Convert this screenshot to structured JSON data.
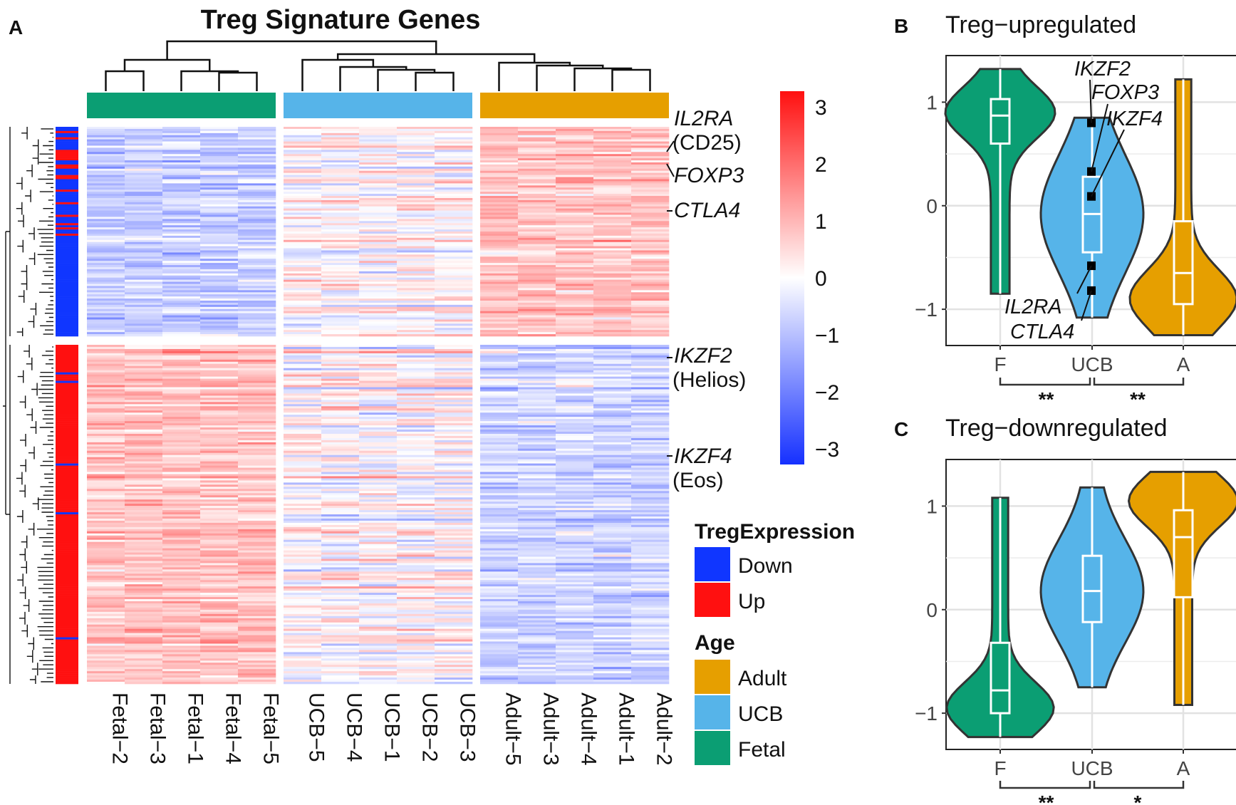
{
  "colors": {
    "fetal": "#0b9e73",
    "ucb": "#56b4e9",
    "adult": "#e69f00",
    "down": "#1036ff",
    "up": "#ff1010",
    "heat_low": "#1530ff",
    "heat_mid": "#ffffff",
    "heat_high": "#ff1414"
  },
  "panel_a": {
    "letter": "A",
    "title": "Treg Signature Genes",
    "groups": [
      {
        "name": "Fetal",
        "color": "#0b9e73",
        "samples": [
          "Fetal−2",
          "Fetal−3",
          "Fetal−1",
          "Fetal−4",
          "Fetal−5"
        ]
      },
      {
        "name": "UCB",
        "color": "#56b4e9",
        "samples": [
          "UCB−5",
          "UCB−4",
          "UCB−1",
          "UCB−2",
          "UCB−3"
        ]
      },
      {
        "name": "Adult",
        "color": "#e69f00",
        "samples": [
          "Adult−5",
          "Adult−3",
          "Adult−4",
          "Adult−1",
          "Adult−2"
        ]
      }
    ],
    "gene_labels": [
      {
        "name": "IL2RA",
        "alias": "(CD25)",
        "italic": true
      },
      {
        "name": "FOXP3",
        "alias": "",
        "italic": true
      },
      {
        "name": "CTLA4",
        "alias": "",
        "italic": true
      },
      {
        "name": "IKZF2",
        "alias": "(Helios)",
        "italic": true
      },
      {
        "name": "IKZF4",
        "alias": "(Eos)",
        "italic": true
      }
    ],
    "colorbar_ticks": [
      "3",
      "2",
      "1",
      "0",
      "−1",
      "−2",
      "−3"
    ],
    "legend": {
      "treg_title": "TregExpression",
      "treg_items": [
        {
          "label": "Down",
          "color": "#1036ff"
        },
        {
          "label": "Up",
          "color": "#ff1010"
        }
      ],
      "age_title": "Age",
      "age_items": [
        {
          "label": "Adult",
          "color": "#e69f00"
        },
        {
          "label": "UCB",
          "color": "#56b4e9"
        },
        {
          "label": "Fetal",
          "color": "#0b9e73"
        }
      ]
    }
  },
  "panel_b": {
    "letter": "B",
    "title": "Treg−upregulated",
    "y_ticks": [
      "1",
      "0",
      "−1"
    ],
    "x_ticks": [
      "F",
      "UCB",
      "A"
    ],
    "significance": [
      "**",
      "**"
    ],
    "marker_labels": [
      "IKZF2",
      "FOXP3",
      "IKZF4",
      "IL2RA",
      "CTLA4"
    ]
  },
  "panel_c": {
    "letter": "C",
    "title": "Treg−downregulated",
    "y_ticks": [
      "1",
      "0",
      "−1"
    ],
    "x_ticks": [
      "F",
      "UCB",
      "A"
    ],
    "significance": [
      "**",
      "*"
    ]
  },
  "chart_data": [
    {
      "type": "heatmap",
      "title": "Treg Signature Genes",
      "columns": [
        "Fetal−2",
        "Fetal−3",
        "Fetal−1",
        "Fetal−4",
        "Fetal−5",
        "UCB−5",
        "UCB−4",
        "UCB−1",
        "UCB−2",
        "UCB−3",
        "Adult−5",
        "Adult−3",
        "Adult−4",
        "Adult−1",
        "Adult−2"
      ],
      "row_blocks": [
        {
          "name": "Down",
          "group_means": {
            "Fetal": -0.7,
            "UCB": 0.1,
            "Adult": 0.8
          }
        },
        {
          "name": "Up",
          "group_means": {
            "Fetal": 0.8,
            "UCB": 0.1,
            "Adult": -0.6
          }
        }
      ],
      "color_scale_range": [
        -3,
        3
      ]
    },
    {
      "type": "violin",
      "title": "Treg−upregulated",
      "categories": [
        "F",
        "UCB",
        "A"
      ],
      "ylim": [
        -1.35,
        1.45
      ],
      "boxes": [
        {
          "category": "F",
          "min": -0.85,
          "q1": 0.6,
          "median": 0.87,
          "q3": 1.03,
          "max": 1.32
        },
        {
          "category": "UCB",
          "min": -1.08,
          "q1": -0.45,
          "median": -0.08,
          "q3": 0.28,
          "max": 0.85
        },
        {
          "category": "A",
          "min": -1.25,
          "q1": -0.95,
          "median": -0.65,
          "q3": -0.15,
          "max": 1.22
        }
      ],
      "markers": [
        {
          "label": "IKZF2",
          "value": 0.8
        },
        {
          "label": "FOXP3",
          "value": 0.33
        },
        {
          "label": "IKZF4",
          "value": 0.09
        },
        {
          "label": "IL2RA",
          "value": -0.58
        },
        {
          "label": "CTLA4",
          "value": -0.82
        }
      ]
    },
    {
      "type": "violin",
      "title": "Treg−downregulated",
      "categories": [
        "F",
        "UCB",
        "A"
      ],
      "ylim": [
        -1.35,
        1.45
      ],
      "boxes": [
        {
          "category": "F",
          "min": -1.23,
          "q1": -1.0,
          "median": -0.78,
          "q3": -0.32,
          "max": 1.08
        },
        {
          "category": "UCB",
          "min": -0.75,
          "q1": -0.12,
          "median": 0.18,
          "q3": 0.52,
          "max": 1.18
        },
        {
          "category": "A",
          "min": -0.92,
          "q1": 0.12,
          "median": 0.7,
          "q3": 0.96,
          "max": 1.33
        }
      ]
    }
  ]
}
